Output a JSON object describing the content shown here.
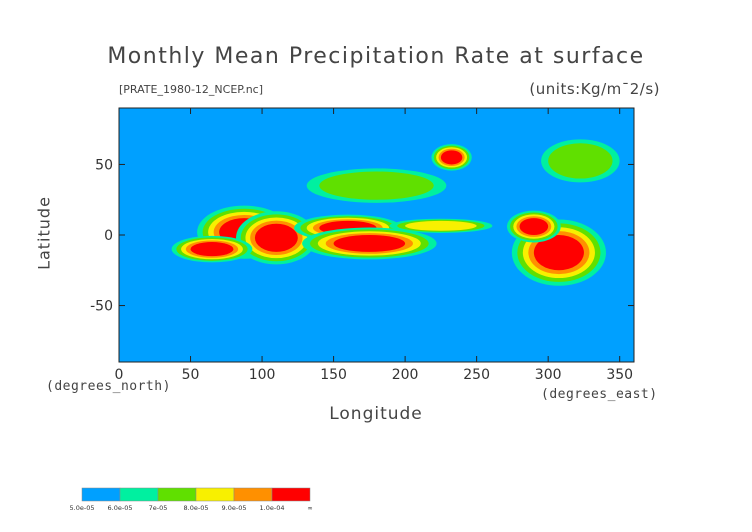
{
  "chart_data": {
    "type": "heatmap",
    "title": "Monthly Mean Precipitation Rate at surface",
    "subtitle": "[PRATE_1980-12_NCEP.nc]",
    "units": "(units:Kg/m¯2/s)",
    "xlabel": "Longitude",
    "ylabel": "Latitude",
    "x_unit": "(degrees_east)",
    "y_unit": "(degrees_north)",
    "xlim": [
      0,
      360
    ],
    "ylim": [
      -90,
      90
    ],
    "x_ticks": [
      0,
      50,
      100,
      150,
      200,
      250,
      300,
      350
    ],
    "y_ticks": [
      -50,
      0,
      50
    ],
    "colorbar": {
      "levels": [
        "5.0e-05",
        "6.0e-05",
        "7e-05",
        "8.0e-05",
        "9.0e-05",
        "1.0e-04",
        "∞"
      ],
      "colors": [
        "#00a0ff",
        "#00f0a0",
        "#60e000",
        "#f8f000",
        "#ff9000",
        "#ff0000"
      ]
    },
    "regions": [
      {
        "lon": [
          70,
          105
        ],
        "lat": [
          -8,
          12
        ],
        "level": 5
      },
      {
        "lon": [
          95,
          125
        ],
        "lat": [
          -12,
          8
        ],
        "level": 5
      },
      {
        "lon": [
          140,
          180
        ],
        "lat": [
          0,
          10
        ],
        "level": 5
      },
      {
        "lon": [
          150,
          200
        ],
        "lat": [
          -12,
          0
        ],
        "level": 5
      },
      {
        "lon": [
          50,
          80
        ],
        "lat": [
          -15,
          -5
        ],
        "level": 5
      },
      {
        "lon": [
          290,
          325
        ],
        "lat": [
          -25,
          0
        ],
        "level": 5
      },
      {
        "lon": [
          280,
          300
        ],
        "lat": [
          0,
          12
        ],
        "level": 5
      },
      {
        "lon": [
          200,
          250
        ],
        "lat": [
          3,
          10
        ],
        "level": 3
      },
      {
        "lon": [
          140,
          220
        ],
        "lat": [
          25,
          45
        ],
        "level": 2
      },
      {
        "lon": [
          225,
          240
        ],
        "lat": [
          50,
          60
        ],
        "level": 5
      },
      {
        "lon": [
          300,
          345
        ],
        "lat": [
          40,
          65
        ],
        "level": 2
      }
    ]
  }
}
